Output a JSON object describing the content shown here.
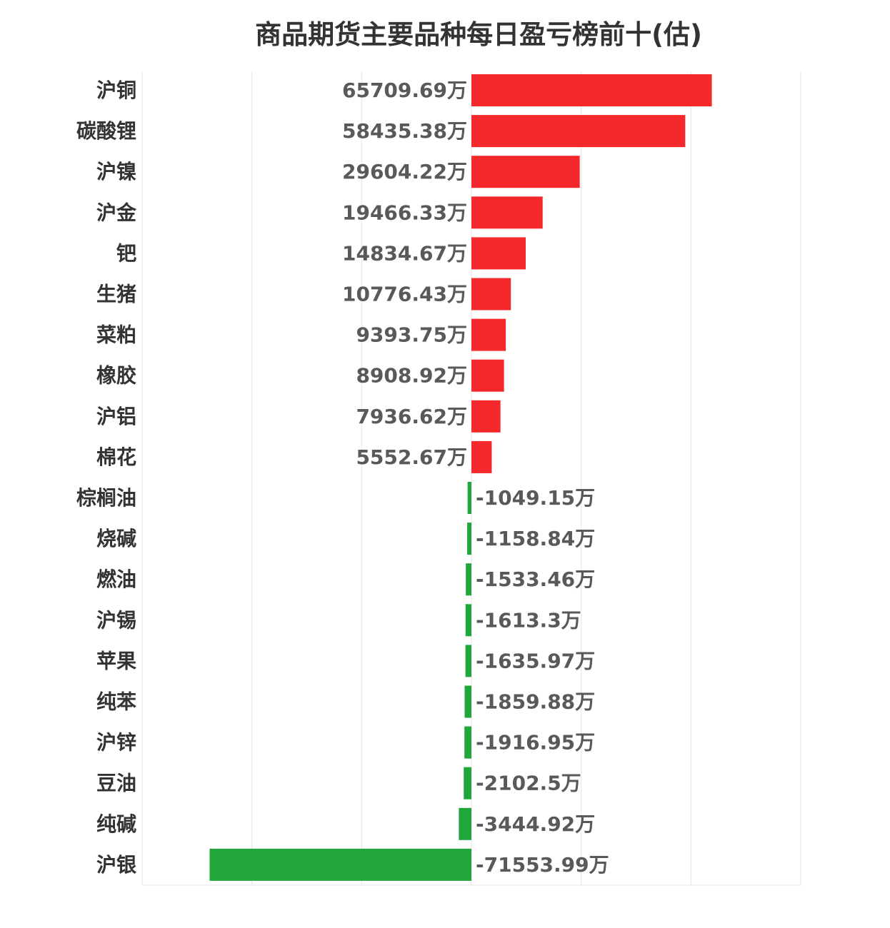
{
  "chart_data": {
    "type": "bar",
    "orientation": "horizontal",
    "title": "商品期货主要品种每日盈亏榜前十(估)",
    "unit": "万",
    "categories": [
      "沪铜",
      "碳酸锂",
      "沪镍",
      "沪金",
      "钯",
      "生猪",
      "菜粕",
      "橡胶",
      "沪铝",
      "棉花",
      "棕榈油",
      "烧碱",
      "燃油",
      "沪锡",
      "苹果",
      "纯苯",
      "沪锌",
      "豆油",
      "纯碱",
      "沪银"
    ],
    "values": [
      65709.69,
      58435.38,
      29604.22,
      19466.33,
      14834.67,
      10776.43,
      9393.75,
      8908.92,
      7936.62,
      5552.67,
      -1049.15,
      -1158.84,
      -1533.46,
      -1613.3,
      -1635.97,
      -1859.88,
      -1916.95,
      -2102.5,
      -3444.92,
      -71553.99
    ],
    "value_labels": [
      "65709.69万",
      "58435.38万",
      "29604.22万",
      "19466.33万",
      "14834.67万",
      "10776.43万",
      "9393.75万",
      "8908.92万",
      "7936.62万",
      "5552.67万",
      "-1049.15万",
      "-1158.84万",
      "-1533.46万",
      "-1613.3万",
      "-1635.97万",
      "-1859.88万",
      "-1916.95万",
      "-2102.5万",
      "-3444.92万",
      "-71553.99万"
    ],
    "xlim": [
      -90000,
      90000
    ],
    "grid": true,
    "positive_color": "#f5282b",
    "negative_color": "#21a63b",
    "grid_color": "#e6e6e6",
    "text_color": "#333333"
  }
}
